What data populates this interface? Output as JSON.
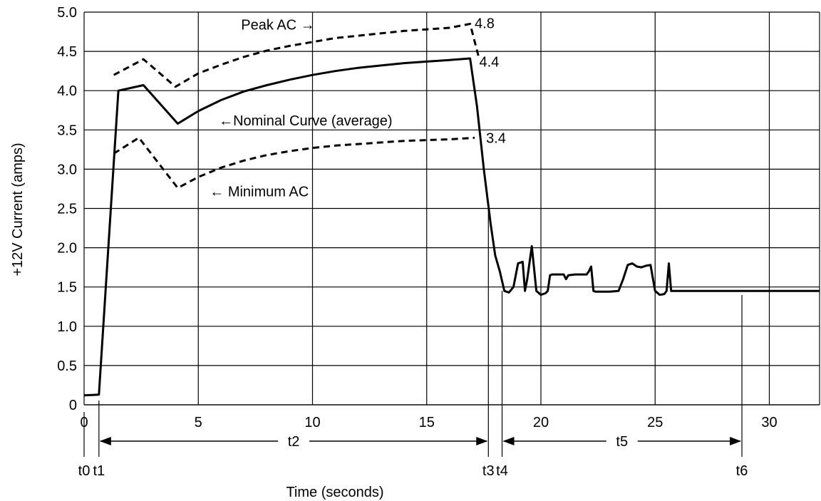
{
  "chart_data": {
    "type": "line",
    "xlabel": "Time (seconds)",
    "ylabel": "+12V Current (amps)",
    "xlim": [
      0,
      32.2
    ],
    "ylim": [
      0,
      5.0
    ],
    "grid": true,
    "x_ticks": [
      0,
      5,
      10,
      15,
      20,
      25,
      30
    ],
    "y_ticks": [
      0,
      0.5,
      1.0,
      1.5,
      2.0,
      2.5,
      3.0,
      3.5,
      4.0,
      4.5,
      5.0
    ],
    "y_tick_labels": [
      "0",
      "0.5",
      "1.0",
      "1.5",
      "2.0",
      "2.5",
      "3.0",
      "3.5",
      "4.0",
      "4.5",
      "5.0"
    ],
    "series": [
      {
        "name": "Peak AC",
        "style": "dashed",
        "x": [
          1.3,
          2.6,
          4.0,
          5.0,
          6.0,
          7.0,
          8.0,
          9.0,
          10.0,
          11.0,
          12.0,
          13.0,
          14.0,
          15.0,
          16.0,
          16.9,
          17.3
        ],
        "y": [
          4.2,
          4.4,
          4.05,
          4.22,
          4.33,
          4.43,
          4.51,
          4.57,
          4.62,
          4.67,
          4.7,
          4.73,
          4.76,
          4.78,
          4.8,
          4.85,
          4.4
        ]
      },
      {
        "name": "Nominal Curve (average)",
        "style": "solid",
        "x": [
          0,
          0.65,
          1.5,
          2.6,
          4.1,
          5.0,
          6.0,
          7.0,
          8.0,
          9.0,
          10.0,
          11.0,
          12.0,
          13.0,
          14.0,
          15.0,
          16.0,
          16.9,
          17.2,
          17.5,
          17.8,
          18.0,
          18.2,
          18.4,
          18.6,
          18.8,
          19.0,
          19.2,
          19.3,
          19.4,
          19.6,
          19.8,
          20.0,
          20.2,
          20.3,
          20.4,
          20.5,
          21.0,
          21.1,
          21.2,
          21.5,
          22.0,
          22.1,
          22.2,
          22.3,
          22.4,
          22.6,
          23.0,
          23.4,
          23.6,
          23.8,
          24.0,
          24.2,
          24.4,
          24.6,
          24.8,
          25.0,
          25.2,
          25.4,
          25.5,
          25.6,
          25.7,
          26.0,
          28.0,
          30.0,
          32.2
        ],
        "y": [
          0.12,
          0.13,
          4.0,
          4.07,
          3.58,
          3.74,
          3.88,
          3.99,
          4.07,
          4.14,
          4.2,
          4.25,
          4.29,
          4.32,
          4.35,
          4.37,
          4.39,
          4.41,
          3.8,
          3.0,
          2.3,
          1.9,
          1.7,
          1.45,
          1.43,
          1.5,
          1.8,
          1.82,
          1.45,
          1.6,
          2.02,
          1.45,
          1.4,
          1.42,
          1.45,
          1.65,
          1.66,
          1.66,
          1.6,
          1.65,
          1.66,
          1.66,
          1.7,
          1.76,
          1.45,
          1.44,
          1.44,
          1.44,
          1.45,
          1.6,
          1.78,
          1.8,
          1.76,
          1.75,
          1.77,
          1.78,
          1.45,
          1.4,
          1.41,
          1.45,
          1.8,
          1.45,
          1.45,
          1.45,
          1.45,
          1.45
        ]
      },
      {
        "name": "Minimum AC",
        "style": "dashed",
        "x": [
          1.3,
          2.4,
          4.1,
          5.0,
          6.0,
          7.0,
          8.0,
          9.0,
          10.0,
          11.0,
          12.0,
          13.0,
          14.0,
          15.0,
          16.0,
          17.1
        ],
        "y": [
          3.2,
          3.4,
          2.76,
          2.9,
          3.02,
          3.11,
          3.18,
          3.23,
          3.27,
          3.3,
          3.32,
          3.34,
          3.36,
          3.37,
          3.38,
          3.4
        ]
      }
    ],
    "annotations": [
      {
        "text": "Peak AC →",
        "x": 10.1,
        "y": 4.84,
        "anchor": "end"
      },
      {
        "text": "4.8",
        "x": 17.1,
        "y": 4.86,
        "anchor": "start"
      },
      {
        "text": "4.4",
        "x": 17.3,
        "y": 4.37,
        "anchor": "start"
      },
      {
        "text": "←Nominal Curve (average)",
        "x": 5.9,
        "y": 3.62,
        "anchor": "start"
      },
      {
        "text": "3.4",
        "x": 17.6,
        "y": 3.4,
        "anchor": "start"
      },
      {
        "text": "← Minimum AC",
        "x": 5.5,
        "y": 2.72,
        "anchor": "start"
      }
    ],
    "markers": [
      {
        "label": "t0",
        "x": 0.0
      },
      {
        "label": "t1",
        "x": 0.65
      },
      {
        "label": "t3",
        "x": 17.7
      },
      {
        "label": "t4",
        "x": 18.3
      },
      {
        "label": "t6",
        "x": 28.8
      }
    ],
    "intervals": [
      {
        "label": "t2",
        "x0": 0.65,
        "x1": 17.7
      },
      {
        "label": "t5",
        "x0": 18.3,
        "x1": 28.8
      }
    ]
  }
}
